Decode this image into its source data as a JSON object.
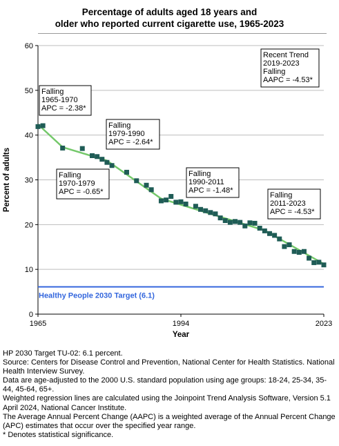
{
  "title_lines": [
    "Percentage of adults aged 18 years and",
    "older who reported current cigarette use, 1965-2023"
  ],
  "chart_data": {
    "type": "line",
    "title": "Percentage of adults aged 18 years and older who reported current cigarette use, 1965-2023",
    "xlabel": "Year",
    "ylabel": "Percent of adults",
    "xlim": [
      1965,
      2023
    ],
    "ylim": [
      0,
      60
    ],
    "x_ticks": [
      "1965",
      "1994",
      "2023"
    ],
    "y_ticks": [
      0,
      10,
      20,
      30,
      40,
      50,
      60
    ],
    "grid": true,
    "colors": {
      "points": "#1f5c56",
      "trend": "#74c86a",
      "target": "#3366dd"
    },
    "observed": {
      "x": [
        1965,
        1966,
        1970,
        1974,
        1976,
        1977,
        1978,
        1979,
        1980,
        1983,
        1985,
        1987,
        1988,
        1990,
        1991,
        1992,
        1993,
        1994,
        1995,
        1997,
        1998,
        1999,
        2000,
        2001,
        2002,
        2003,
        2004,
        2005,
        2006,
        2007,
        2008,
        2009,
        2010,
        2011,
        2012,
        2013,
        2014,
        2015,
        2016,
        2017,
        2018,
        2019,
        2020,
        2021,
        2022,
        2023
      ],
      "y": [
        41.9,
        42.1,
        37.1,
        37.0,
        35.4,
        35.2,
        34.6,
        33.9,
        33.2,
        31.7,
        29.8,
        28.8,
        27.8,
        25.3,
        25.5,
        26.3,
        25.0,
        25.1,
        24.6,
        24.1,
        23.4,
        23.1,
        22.7,
        22.4,
        21.5,
        20.9,
        20.5,
        20.7,
        20.5,
        19.7,
        20.4,
        20.3,
        19.2,
        18.6,
        18.0,
        17.6,
        16.8,
        15.1,
        15.5,
        14.0,
        13.8,
        14.0,
        12.5,
        11.5,
        11.6,
        11.0
      ]
    },
    "trend": {
      "x": [
        1965,
        1970,
        1979,
        1990,
        2011,
        2019,
        2023
      ],
      "y": [
        42.4,
        37.3,
        34.3,
        25.8,
        18.7,
        13.7,
        11.2
      ]
    },
    "target": {
      "value": 6.1,
      "label": "Healthy People 2030 Target (6.1)"
    },
    "annotations": [
      {
        "lines": [
          "Falling",
          "1965-1970",
          "APC = -2.38*"
        ]
      },
      {
        "lines": [
          "Falling",
          "1970-1979",
          "APC = -0.65*"
        ]
      },
      {
        "lines": [
          "Falling",
          "1979-1990",
          "APC = -2.64*"
        ]
      },
      {
        "lines": [
          "Falling",
          "1990-2011",
          "APC = -1.48*"
        ]
      },
      {
        "lines": [
          "Falling",
          "2011-2023",
          "APC = -4.53*"
        ]
      },
      {
        "lines": [
          "Recent Trend",
          "2019-2023",
          "Falling",
          "AAPC = -4.53*"
        ]
      }
    ]
  },
  "notes": [
    "HP 2030 Target TU-02: 6.1 percent.",
    "Source: Centers for Disease Control and Prevention, National Center for Health Statistics. National Health Interview Survey.",
    "Data are age-adjusted to the 2000 U.S. standard population using age groups: 18-24, 25-34, 35-44, 45-64, 65+.",
    "Weighted regression lines are calculated using the Joinpoint Trend Analysis Software, Version 5.1 April 2024, National Cancer Institute.",
    "The Average Annual Percent Change (AAPC) is a weighted average of the Annual Percent Change (APC) estimates that occur over the specified year range.",
    "* Denotes statistical significance."
  ]
}
